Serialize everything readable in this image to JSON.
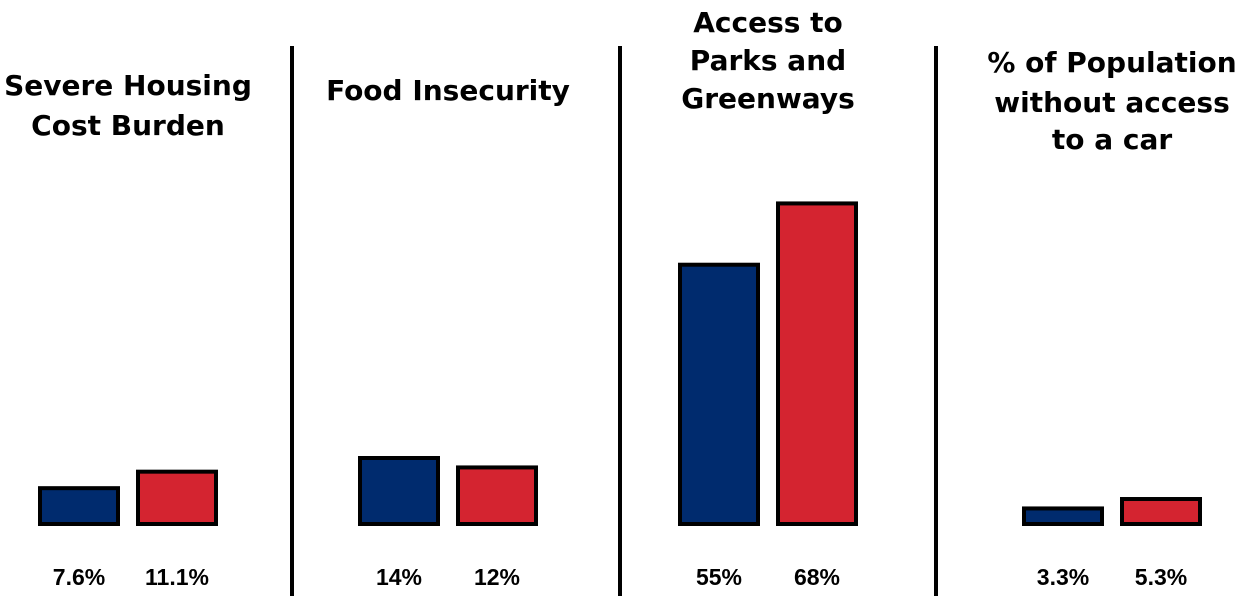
{
  "chart_data": [
    {
      "type": "bar",
      "title": "Severe Housing Cost Burden",
      "title_lines": [
        "Severe Housing",
        "Cost Burden"
      ],
      "values": [
        7.6,
        11.1
      ],
      "value_labels": [
        "7.6%",
        "11.1%"
      ],
      "colors": [
        "#002b6e",
        "#d42430"
      ],
      "ylim": [
        0,
        70
      ]
    },
    {
      "type": "bar",
      "title": "Food Insecurity",
      "title_lines": [
        "Food Insecurity"
      ],
      "values": [
        14,
        12
      ],
      "value_labels": [
        "14%",
        "12%"
      ],
      "colors": [
        "#002b6e",
        "#d42430"
      ],
      "ylim": [
        0,
        70
      ]
    },
    {
      "type": "bar",
      "title": "Access to Parks and Greenways",
      "title_lines": [
        "Access to",
        "Parks and",
        "Greenways"
      ],
      "values": [
        55,
        68
      ],
      "value_labels": [
        "55%",
        "68%"
      ],
      "colors": [
        "#002b6e",
        "#d42430"
      ],
      "ylim": [
        0,
        70
      ]
    },
    {
      "type": "bar",
      "title": "% of Population without access to a car",
      "title_lines": [
        "% of Population",
        "without access",
        "to a car"
      ],
      "values": [
        3.3,
        5.3
      ],
      "value_labels": [
        "3.3%",
        "5.3%"
      ],
      "colors": [
        "#002b6e",
        "#d42430"
      ],
      "ylim": [
        0,
        70
      ]
    }
  ]
}
